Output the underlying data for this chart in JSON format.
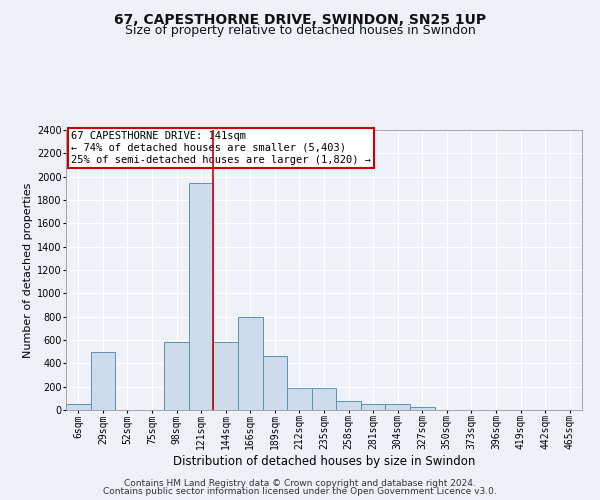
{
  "title": "67, CAPESTHORNE DRIVE, SWINDON, SN25 1UP",
  "subtitle": "Size of property relative to detached houses in Swindon",
  "xlabel": "Distribution of detached houses by size in Swindon",
  "ylabel": "Number of detached properties",
  "categories": [
    "6sqm",
    "29sqm",
    "52sqm",
    "75sqm",
    "98sqm",
    "121sqm",
    "144sqm",
    "166sqm",
    "189sqm",
    "212sqm",
    "235sqm",
    "258sqm",
    "281sqm",
    "304sqm",
    "327sqm",
    "350sqm",
    "373sqm",
    "396sqm",
    "419sqm",
    "442sqm",
    "465sqm"
  ],
  "values": [
    50,
    500,
    0,
    0,
    580,
    1950,
    580,
    800,
    460,
    190,
    190,
    80,
    55,
    50,
    25,
    0,
    0,
    0,
    0,
    0,
    0
  ],
  "bar_color": "#ccdcec",
  "bar_edge_color": "#6090b0",
  "vline_x": 5.5,
  "annotation_text": "67 CAPESTHORNE DRIVE: 141sqm\n← 74% of detached houses are smaller (5,403)\n25% of semi-detached houses are larger (1,820) →",
  "annotation_box_color": "#ffffff",
  "annotation_box_edge_color": "#cc0000",
  "vline_color": "#cc0000",
  "ylim": [
    0,
    2400
  ],
  "yticks": [
    0,
    200,
    400,
    600,
    800,
    1000,
    1200,
    1400,
    1600,
    1800,
    2000,
    2200,
    2400
  ],
  "footnote1": "Contains HM Land Registry data © Crown copyright and database right 2024.",
  "footnote2": "Contains public sector information licensed under the Open Government Licence v3.0.",
  "background_color": "#eef2f8",
  "grid_color": "#ffffff",
  "title_fontsize": 10,
  "subtitle_fontsize": 9,
  "xlabel_fontsize": 8.5,
  "ylabel_fontsize": 8,
  "tick_fontsize": 7,
  "annotation_fontsize": 7.5,
  "footnote_fontsize": 6.5
}
